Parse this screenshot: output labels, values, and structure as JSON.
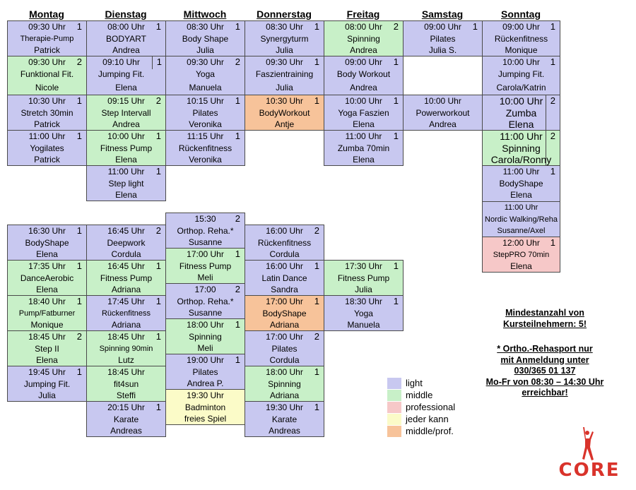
{
  "days": [
    "Montag",
    "Dienstag",
    "Mittwoch",
    "Donnerstag",
    "Freitag",
    "Samstag",
    "Sonntag"
  ],
  "morning": {
    "montag": [
      {
        "time": "09:30 Uhr",
        "level": "1",
        "name": "Therapie-Pump",
        "trainer": "Patrick",
        "type": "light"
      },
      {
        "time": "09:30 Uhr",
        "level": "2",
        "name": "Funktional Fit.",
        "trainer": "Nicole",
        "type": "middle"
      },
      {
        "time": "10:30 Uhr",
        "level": "1",
        "name": "Stretch 30min",
        "trainer": "Patrick",
        "type": "light"
      },
      {
        "time": "11:00 Uhr",
        "level": "1",
        "name": "Yogilates",
        "trainer": "Patrick",
        "type": "light"
      }
    ],
    "dienstag": [
      {
        "time": "08:00 Uhr",
        "level": "1",
        "name": "BODYART",
        "trainer": "Andrea",
        "type": "light"
      },
      {
        "time": "09:10 Uhr",
        "level": "1",
        "name": "Jumping Fit.",
        "trainer": "Elena",
        "type": "light"
      },
      {
        "time": "09:15 Uhr",
        "level": "2",
        "name": "Step Intervall",
        "trainer": "Andrea",
        "type": "middle"
      },
      {
        "time": "10:00 Uhr",
        "level": "1",
        "name": "Fitness Pump",
        "trainer": "Elena",
        "type": "middle"
      },
      {
        "time": "11:00 Uhr",
        "level": "1",
        "name": "Step light",
        "trainer": "Elena",
        "type": "light"
      }
    ],
    "mittwoch": [
      {
        "time": "08:30 Uhr",
        "level": "1",
        "name": "Body Shape",
        "trainer": "Julia",
        "type": "light"
      },
      {
        "time": "09:30 Uhr",
        "level": "2",
        "name": "Yoga",
        "trainer": "Manuela",
        "type": "light"
      },
      {
        "time": "10:15 Uhr",
        "level": "1",
        "name": "Pilates",
        "trainer": "Veronika",
        "type": "light"
      },
      {
        "time": "11:15 Uhr",
        "level": "1",
        "name": "Rückenfitness",
        "trainer": "Veronika",
        "type": "light"
      }
    ],
    "donnerstag": [
      {
        "time": "08:30 Uhr",
        "level": "1",
        "name": "Synergyturm",
        "trainer": "Julia",
        "type": "light"
      },
      {
        "time": "09:30 Uhr",
        "level": "1",
        "name": "Faszientraining",
        "trainer": "Julia",
        "type": "light"
      },
      {
        "time": "10:30 Uhr",
        "level": "1",
        "name": "BodyWorkout",
        "trainer": "Antje",
        "type": "mprof"
      }
    ],
    "freitag": [
      {
        "time": "08:00 Uhr",
        "level": "2",
        "name": "Spinning",
        "trainer": "Andrea",
        "type": "middle"
      },
      {
        "time": "09:00 Uhr",
        "level": "1",
        "name": "Body Workout",
        "trainer": "Andrea",
        "type": "light"
      },
      {
        "time": "10:00 Uhr",
        "level": "1",
        "name": "Yoga Faszien",
        "trainer": "Elena",
        "type": "light"
      },
      {
        "time": "11:00 Uhr",
        "level": "1",
        "name": "Zumba 70min",
        "trainer": "Elena",
        "type": "light"
      }
    ],
    "samstag": [
      {
        "time": "09:00 Uhr",
        "level": "1",
        "name": "Pilates",
        "trainer": "Julia S.",
        "type": "light"
      },
      {
        "time": "10:00 Uhr",
        "level": "",
        "name": "Powerworkout",
        "trainer": "Andrea",
        "type": "light"
      }
    ],
    "sonntag": [
      {
        "time": "09:00 Uhr",
        "level": "1",
        "name": "Rückenfitness",
        "trainer": "Monique",
        "type": "light"
      },
      {
        "time": "10:00 Uhr",
        "level": "1",
        "name": "Jumping Fit.",
        "trainer": "Carola/Katrin",
        "type": "light"
      },
      {
        "time": "10:00 Uhr",
        "level": "2",
        "name": "Zumba",
        "trainer": "Elena",
        "type": "light"
      },
      {
        "time": "11:00 Uhr",
        "level": "2",
        "name": "Spinning",
        "trainer": "Carola/Ronny",
        "type": "middle"
      },
      {
        "time": "11:00 Uhr",
        "level": "1",
        "name": "BodyShape",
        "trainer": "Elena",
        "type": "light"
      },
      {
        "time": "11:00 Uhr",
        "level": "",
        "name": "Nordic Walking/Reha",
        "trainer": "Susanne/Axel",
        "type": "light"
      },
      {
        "time": "12:00 Uhr",
        "level": "1",
        "name": "StepPRO 70min",
        "trainer": "Elena",
        "type": "prof"
      }
    ]
  },
  "evening": {
    "montag": [
      {
        "time": "16:30 Uhr",
        "level": "1",
        "name": "BodyShape",
        "trainer": "Elena",
        "type": "light"
      },
      {
        "time": "17:35 Uhr",
        "level": "1",
        "name": "DanceAerobic",
        "trainer": "Elena",
        "type": "middle"
      },
      {
        "time": "18:40 Uhr",
        "level": "1",
        "name": "Pump/Fatburner",
        "trainer": "Monique",
        "type": "middle"
      },
      {
        "time": "18:45 Uhr",
        "level": "2",
        "name": "Step II",
        "trainer": "Elena",
        "type": "middle"
      },
      {
        "time": "19:45 Uhr",
        "level": "1",
        "name": "Jumping Fit.",
        "trainer": "Julia",
        "type": "light"
      }
    ],
    "dienstag": [
      {
        "time": "16:45 Uhr",
        "level": "2",
        "name": "Deepwork",
        "trainer": "Cordula",
        "type": "light"
      },
      {
        "time": "16:45 Uhr",
        "level": "1",
        "name": "Fitness Pump",
        "trainer": "Adriana",
        "type": "middle"
      },
      {
        "time": "17:45 Uhr",
        "level": "1",
        "name": "Rückenfitness",
        "trainer": "Adriana",
        "type": "light"
      },
      {
        "time": "18:45 Uhr",
        "level": "1",
        "name": "Spinning 90min",
        "trainer": "Lutz",
        "type": "middle"
      },
      {
        "time": "18:45 Uhr",
        "level": "",
        "name": "fit4sun",
        "trainer": "Steffi",
        "type": "middle"
      },
      {
        "time": "20:15 Uhr",
        "level": "1",
        "name": "Karate",
        "trainer": "Andreas",
        "type": "light"
      }
    ],
    "mittwoch": [
      {
        "time": "15:30",
        "level": "2",
        "name": "Orthop. Reha.*",
        "trainer": "Susanne",
        "type": "light"
      },
      {
        "time": "17:00 Uhr",
        "level": "1",
        "name": "Fitness Pump",
        "trainer": "Meli",
        "type": "middle"
      },
      {
        "time": "17:00",
        "level": "2",
        "name": "Orthop. Reha.*",
        "trainer": "Susanne",
        "type": "light"
      },
      {
        "time": "18:00 Uhr",
        "level": "1",
        "name": "Spinning",
        "trainer": "Meli",
        "type": "middle"
      },
      {
        "time": "19:00 Uhr",
        "level": "1",
        "name": "Pilates",
        "trainer": "Andrea P.",
        "type": "light"
      },
      {
        "time": "19:30 Uhr",
        "level": "",
        "name": "Badminton",
        "trainer": "freies Spiel",
        "type": "jeder"
      }
    ],
    "donnerstag": [
      {
        "time": "16:00 Uhr",
        "level": "2",
        "name": "Rückenfitness",
        "trainer": "Cordula",
        "type": "light"
      },
      {
        "time": "16:00 Uhr",
        "level": "1",
        "name": "Latin Dance",
        "trainer": "Sandra",
        "type": "light"
      },
      {
        "time": "17:00 Uhr",
        "level": "1",
        "name": "BodyShape",
        "trainer": "Adriana",
        "type": "mprof"
      },
      {
        "time": "17:00 Uhr",
        "level": "2",
        "name": "Pilates",
        "trainer": "Cordula",
        "type": "light"
      },
      {
        "time": "18:00 Uhr",
        "level": "1",
        "name": "Spinning",
        "trainer": "Adriana",
        "type": "middle"
      },
      {
        "time": "19:30 Uhr",
        "level": "1",
        "name": "Karate",
        "trainer": "Andreas",
        "type": "light"
      }
    ],
    "freitag": [
      {
        "time": "17:30 Uhr",
        "level": "1",
        "name": "Fitness Pump",
        "trainer": "Julia",
        "type": "middle"
      },
      {
        "time": "18:30 Uhr",
        "level": "1",
        "name": "Yoga",
        "trainer": "Manuela",
        "type": "light"
      }
    ]
  },
  "legend": [
    {
      "label": "light",
      "color": "#c8c8f0"
    },
    {
      "label": "middle",
      "color": "#c8f0c8"
    },
    {
      "label": "professional",
      "color": "#f6c8c8"
    },
    {
      "label": "jeder kann",
      "color": "#fbfbc8"
    },
    {
      "label": "middle/prof.",
      "color": "#f7c39a"
    }
  ],
  "notes": {
    "min_line1": "Mindestanzahl von",
    "min_line2": "Kursteilnehmern: 5!",
    "reha_line1": "* Ortho.-Rehasport nur",
    "reha_line2": "mit Anmeldung unter",
    "reha_line3": "030/365 01 137",
    "reha_line4": "Mo-Fr von 08:30 – 14:30 Uhr",
    "reha_line5": "erreichbar!"
  },
  "logo": {
    "text": "CORE",
    "icon": "yoga-figure-icon",
    "color": "#d9332b"
  }
}
